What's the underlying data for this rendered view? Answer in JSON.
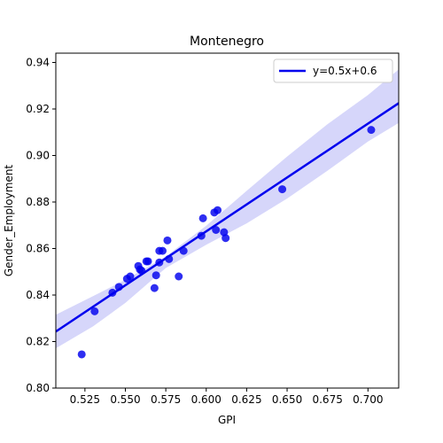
{
  "chart_data": {
    "type": "scatter",
    "title": "Montenegro",
    "xlabel": "GPI",
    "ylabel": "Gender_Employment",
    "xlim": [
      0.507,
      0.719
    ],
    "ylim": [
      0.8,
      0.944
    ],
    "xticks": [
      0.525,
      0.55,
      0.575,
      0.6,
      0.625,
      0.65,
      0.675,
      0.7
    ],
    "yticks": [
      0.8,
      0.82,
      0.84,
      0.86,
      0.88,
      0.9,
      0.92,
      0.94
    ],
    "xtick_labels": [
      "0.525",
      "0.550",
      "0.575",
      "0.600",
      "0.625",
      "0.650",
      "0.675",
      "0.700"
    ],
    "ytick_labels": [
      "0.80",
      "0.82",
      "0.84",
      "0.86",
      "0.88",
      "0.90",
      "0.92",
      "0.94"
    ],
    "grid": false,
    "legend": {
      "position": "top-right",
      "entries": [
        "y=0.5x+0.6"
      ]
    },
    "colors": {
      "points": "#0000ee",
      "line": "#0000ee",
      "band": "#c8c8f8"
    },
    "points": [
      {
        "x": 0.523,
        "y": 0.8145
      },
      {
        "x": 0.531,
        "y": 0.833
      },
      {
        "x": 0.542,
        "y": 0.841
      },
      {
        "x": 0.546,
        "y": 0.8435
      },
      {
        "x": 0.551,
        "y": 0.847
      },
      {
        "x": 0.553,
        "y": 0.848
      },
      {
        "x": 0.558,
        "y": 0.8525
      },
      {
        "x": 0.559,
        "y": 0.851
      },
      {
        "x": 0.56,
        "y": 0.8505
      },
      {
        "x": 0.563,
        "y": 0.8545
      },
      {
        "x": 0.564,
        "y": 0.8545
      },
      {
        "x": 0.568,
        "y": 0.843
      },
      {
        "x": 0.569,
        "y": 0.8485
      },
      {
        "x": 0.571,
        "y": 0.854
      },
      {
        "x": 0.571,
        "y": 0.859
      },
      {
        "x": 0.573,
        "y": 0.859
      },
      {
        "x": 0.576,
        "y": 0.8635
      },
      {
        "x": 0.577,
        "y": 0.8555
      },
      {
        "x": 0.583,
        "y": 0.848
      },
      {
        "x": 0.586,
        "y": 0.859
      },
      {
        "x": 0.597,
        "y": 0.8655
      },
      {
        "x": 0.598,
        "y": 0.873
      },
      {
        "x": 0.605,
        "y": 0.8755
      },
      {
        "x": 0.606,
        "y": 0.868
      },
      {
        "x": 0.607,
        "y": 0.8765
      },
      {
        "x": 0.611,
        "y": 0.867
      },
      {
        "x": 0.612,
        "y": 0.8645
      },
      {
        "x": 0.647,
        "y": 0.8855
      },
      {
        "x": 0.702,
        "y": 0.911
      }
    ],
    "regression": {
      "label": "y=0.5x+0.6",
      "line": [
        {
          "x": 0.507,
          "y": 0.8243
        },
        {
          "x": 0.719,
          "y": 0.9225
        }
      ],
      "ci_upper": [
        {
          "x": 0.507,
          "y": 0.8315
        },
        {
          "x": 0.53,
          "y": 0.8395
        },
        {
          "x": 0.55,
          "y": 0.8466
        },
        {
          "x": 0.575,
          "y": 0.8566
        },
        {
          "x": 0.6,
          "y": 0.8698
        },
        {
          "x": 0.625,
          "y": 0.8848
        },
        {
          "x": 0.65,
          "y": 0.8995
        },
        {
          "x": 0.675,
          "y": 0.9135
        },
        {
          "x": 0.7,
          "y": 0.926
        },
        {
          "x": 0.719,
          "y": 0.937
        }
      ],
      "ci_lower": [
        {
          "x": 0.507,
          "y": 0.8171
        },
        {
          "x": 0.53,
          "y": 0.8265
        },
        {
          "x": 0.55,
          "y": 0.8366
        },
        {
          "x": 0.575,
          "y": 0.8516
        },
        {
          "x": 0.6,
          "y": 0.8616
        },
        {
          "x": 0.625,
          "y": 0.8708
        },
        {
          "x": 0.65,
          "y": 0.8815
        },
        {
          "x": 0.675,
          "y": 0.8935
        },
        {
          "x": 0.7,
          "y": 0.906
        },
        {
          "x": 0.719,
          "y": 0.914
        }
      ]
    }
  }
}
